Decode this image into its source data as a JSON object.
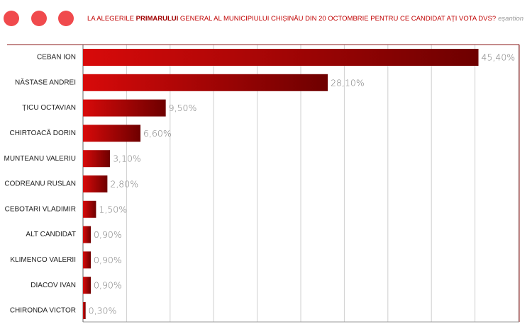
{
  "chart_data": {
    "type": "hbar",
    "title_parts": [
      "LA  ALEGERILE ",
      "PRIMARULUI",
      " GENERAL AL MUNICIPIULUI CHIȘINĂU DIN 20 OCTOMBRIE PENTRU CE CANDIDAT AȚI  VOTA DVS?"
    ],
    "note": "eșantion",
    "categories": [
      "CEBAN  ION",
      "NĂSTASE ANDREI",
      "ȚICU OCTAVIAN",
      "CHIRTOACĂ DORIN",
      "MUNTEANU VALERIU",
      "CODREANU RUSLAN",
      "CEBOTARI VLADIMIR",
      "ALT CANDIDAT",
      "KLIMENCO VALERII",
      "DIACOV IVAN",
      "CHIRONDA VICTOR"
    ],
    "values": [
      45.4,
      28.1,
      9.5,
      6.6,
      3.1,
      2.8,
      1.5,
      0.9,
      0.9,
      0.9,
      0.3
    ],
    "value_labels": [
      "45,40%",
      "28,10%",
      "9,50%",
      "6,60%",
      "3,10%",
      "2,80%",
      "1,50%",
      "0,90%",
      "0,90%",
      "0,90%",
      "0,30%"
    ],
    "color_start": "#d80a0a",
    "color_end": "#6e0000",
    "xlim": [
      0,
      50
    ],
    "xticks": [
      0,
      5,
      10,
      15,
      20,
      25,
      30,
      35,
      40,
      45,
      50
    ],
    "grid": true
  }
}
